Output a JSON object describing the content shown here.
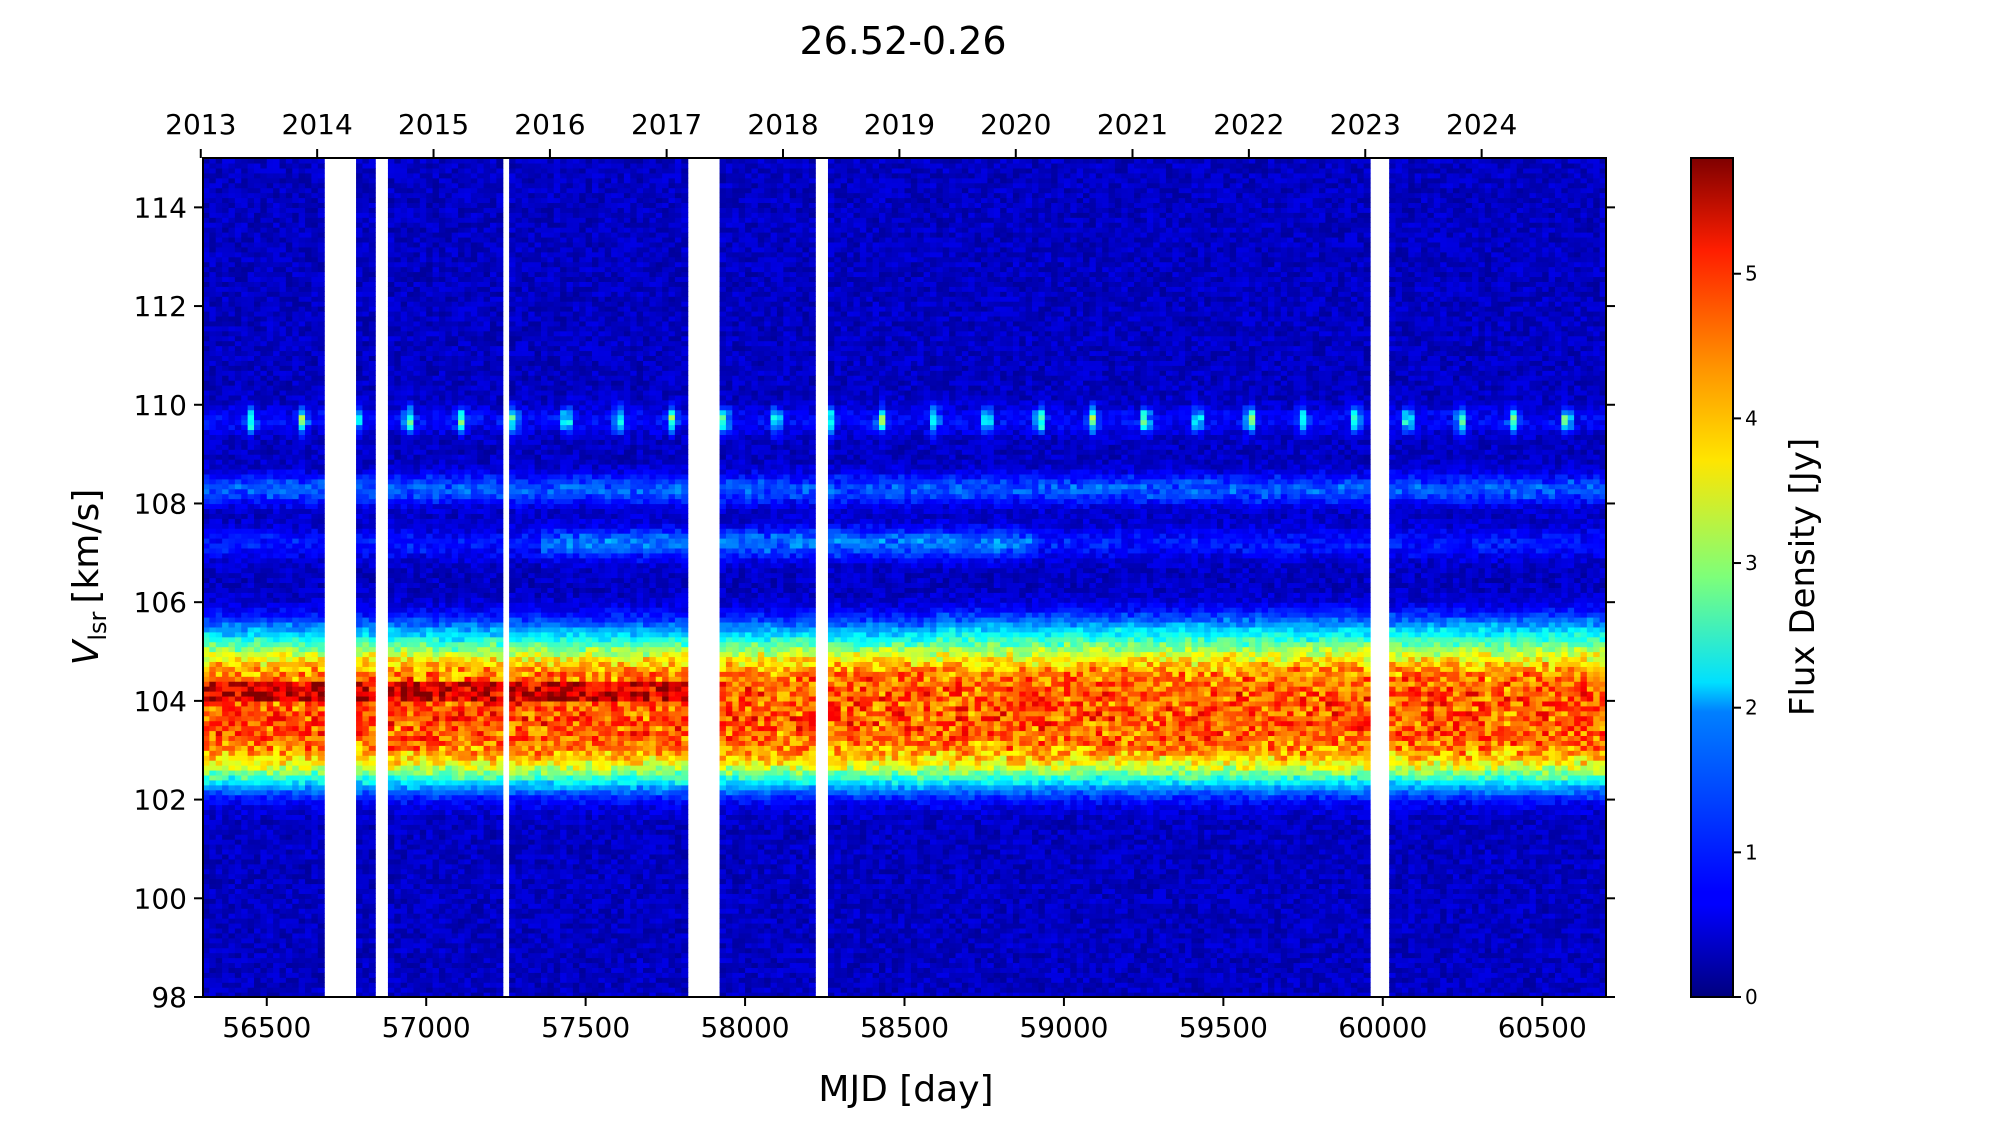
{
  "chart_data": {
    "type": "heatmap",
    "title": "26.52-0.26",
    "xlabel": "MJD [day]",
    "ylabel_main": "V",
    "ylabel_sub": "lsr",
    "ylabel_unit": "[km/s]",
    "xlim": [
      56300,
      60700
    ],
    "ylim": [
      98,
      115
    ],
    "x_ticks": [
      56500,
      57000,
      57500,
      58000,
      58500,
      59000,
      59500,
      60000,
      60500
    ],
    "x_tick_labels": [
      "56500",
      "57000",
      "57500",
      "58000",
      "58500",
      "59000",
      "59500",
      "60000",
      "60500"
    ],
    "y_ticks": [
      98,
      100,
      102,
      104,
      106,
      108,
      110,
      112,
      114
    ],
    "y_tick_labels": [
      "98",
      "100",
      "102",
      "104",
      "106",
      "108",
      "110",
      "112",
      "114"
    ],
    "top_axis": {
      "mjd": [
        56293,
        56658,
        57023,
        57388,
        57754,
        58119,
        58484,
        58849,
        59215,
        59580,
        59945,
        60310
      ],
      "labels": [
        "2013",
        "2014",
        "2015",
        "2016",
        "2017",
        "2018",
        "2019",
        "2020",
        "2021",
        "2022",
        "2023",
        "2024"
      ]
    },
    "colorbar": {
      "label": "Flux Density [Jy]",
      "range": [
        0,
        5.8
      ],
      "ticks": [
        0,
        1,
        2,
        3,
        4,
        5
      ],
      "tick_labels": [
        "0",
        "1",
        "2",
        "3",
        "4",
        "5"
      ],
      "colormap": "jet"
    },
    "data_gaps_mjd": [
      [
        56676,
        56783
      ],
      [
        56840,
        56852
      ],
      [
        56870,
        56876
      ],
      [
        57240,
        57262
      ],
      [
        57822,
        57910
      ],
      [
        58225,
        58262
      ],
      [
        59960,
        59990
      ],
      [
        60010,
        60023
      ]
    ],
    "features": [
      {
        "velocity": 103.8,
        "width": 1.3,
        "peak_flux": 4.2
      },
      {
        "velocity": 109.7,
        "width": 0.25,
        "peak_flux": 2.5
      },
      {
        "velocity": 108.3,
        "width": 0.3,
        "peak_flux": 0.9
      },
      {
        "velocity": 107.2,
        "width": 0.3,
        "peak_flux": 1.1
      },
      {
        "velocity": 105.5,
        "width": 0.4,
        "peak_flux": 0.7
      }
    ]
  }
}
